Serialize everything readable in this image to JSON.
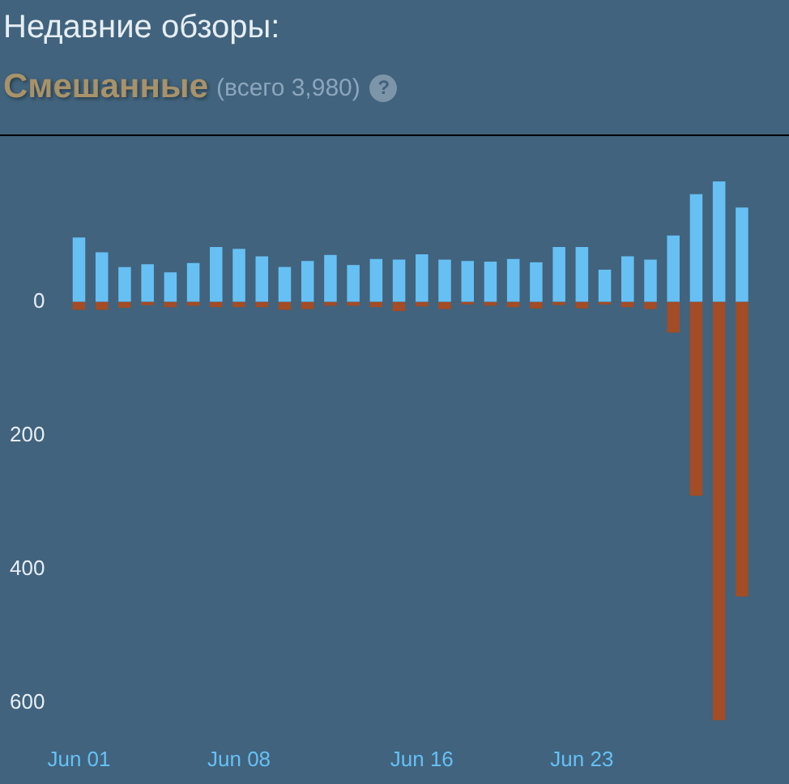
{
  "chart_data": {
    "type": "bar",
    "title": "Недавние обзоры:",
    "subtitle": "Смешанные",
    "annotations": [
      "(всего 3,980)",
      "?"
    ],
    "categories": [
      "Jun 01",
      null,
      null,
      null,
      null,
      null,
      null,
      "Jun 08",
      null,
      null,
      null,
      null,
      null,
      null,
      null,
      "Jun 16",
      null,
      null,
      null,
      null,
      null,
      null,
      "Jun 23",
      null,
      null,
      null,
      null,
      null,
      null,
      null
    ],
    "series": [
      {
        "color": "#66c0f4",
        "values": [
          96,
          74,
          52,
          56,
          44,
          58,
          82,
          79,
          68,
          52,
          61,
          70,
          55,
          64,
          63,
          71,
          63,
          61,
          60,
          64,
          59,
          82,
          82,
          48,
          68,
          63,
          99,
          161,
          180,
          141
        ]
      },
      {
        "color": "#a34c25",
        "values": [
          -12,
          -12,
          -9,
          -5,
          -8,
          -6,
          -8,
          -8,
          -8,
          -12,
          -11,
          -6,
          -6,
          -8,
          -14,
          -7,
          -11,
          -4,
          -6,
          -8,
          -10,
          -5,
          -10,
          -4,
          -8,
          -11,
          -46,
          -290,
          -626,
          -441
        ]
      }
    ],
    "stacked": true,
    "ylim": [
      -640,
      180
    ],
    "yticks": [
      0,
      {
        "value": -200,
        "label": "200"
      },
      {
        "value": -400,
        "label": "400"
      },
      {
        "value": -600,
        "label": "600"
      }
    ],
    "grid": false,
    "legend": false
  }
}
